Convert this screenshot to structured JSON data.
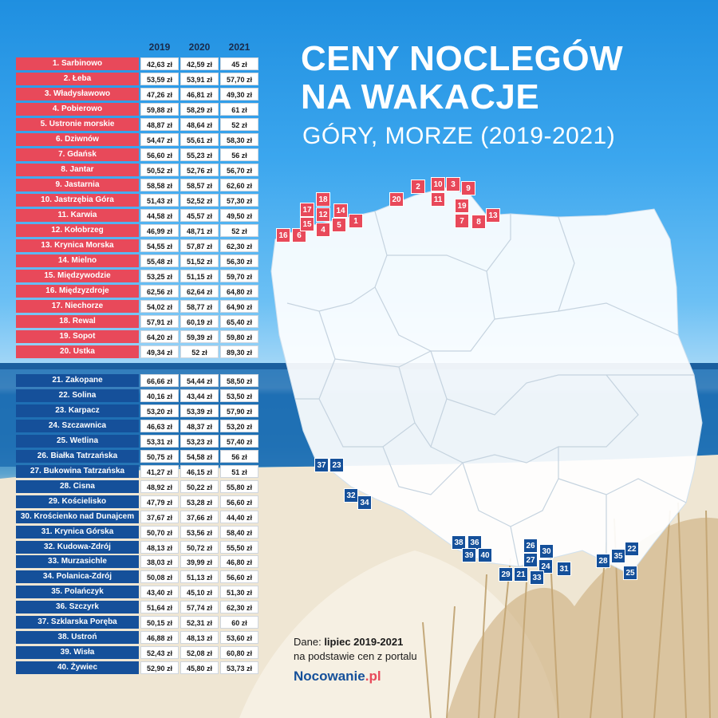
{
  "title_line1": "CENY NOCLEGÓW",
  "title_line2": "NA WAKACJE",
  "subtitle": "GÓRY, MORZE (2019-2021)",
  "years": [
    "2019",
    "2020",
    "2021"
  ],
  "colors": {
    "sea": "#e8495a",
    "mountains": "#15509a"
  },
  "rows": [
    {
      "label": "1. Sarbinowo",
      "v2019": "42,63 zł",
      "v2020": "42,59 zł",
      "v2021": "45 zł",
      "group": "sea"
    },
    {
      "label": "2. Łeba",
      "v2019": "53,59 zł",
      "v2020": "53,91 zł",
      "v2021": "57,70 zł",
      "group": "sea"
    },
    {
      "label": "3. Władysławowo",
      "v2019": "47,26 zł",
      "v2020": "46,81 zł",
      "v2021": "49,30 zł",
      "group": "sea"
    },
    {
      "label": "4. Pobierowo",
      "v2019": "59,88 zł",
      "v2020": "58,29 zł",
      "v2021": "61 zł",
      "group": "sea"
    },
    {
      "label": "5. Ustronie morskie",
      "v2019": "48,87 zł",
      "v2020": "48,64 zł",
      "v2021": "52 zł",
      "group": "sea"
    },
    {
      "label": "6. Dziwnów",
      "v2019": "54,47 zł",
      "v2020": "55,61 zł",
      "v2021": "58,30 zł",
      "group": "sea"
    },
    {
      "label": "7. Gdańsk",
      "v2019": "56,60 zł",
      "v2020": "55,23 zł",
      "v2021": "56 zł",
      "group": "sea"
    },
    {
      "label": "8. Jantar",
      "v2019": "50,52 zł",
      "v2020": "52,76 zł",
      "v2021": "56,70 zł",
      "group": "sea"
    },
    {
      "label": "9. Jastarnia",
      "v2019": "58,58 zł",
      "v2020": "58,57 zł",
      "v2021": "62,60 zł",
      "group": "sea"
    },
    {
      "label": "10. Jastrzębia Góra",
      "v2019": "51,43 zł",
      "v2020": "52,52 zł",
      "v2021": "57,30 zł",
      "group": "sea"
    },
    {
      "label": "11. Karwia",
      "v2019": "44,58 zł",
      "v2020": "45,57 zł",
      "v2021": "49,50 zł",
      "group": "sea"
    },
    {
      "label": "12. Kołobrzeg",
      "v2019": "46,99 zł",
      "v2020": "48,71 zł",
      "v2021": "52 zł",
      "group": "sea"
    },
    {
      "label": "13. Krynica Morska",
      "v2019": "54,55 zł",
      "v2020": "57,87 zł",
      "v2021": "62,30 zł",
      "group": "sea"
    },
    {
      "label": "14. Mielno",
      "v2019": "55,48 zł",
      "v2020": "51,52 zł",
      "v2021": "56,30 zł",
      "group": "sea"
    },
    {
      "label": "15. Międzywodzie",
      "v2019": "53,25 zł",
      "v2020": "51,15 zł",
      "v2021": "59,70 zł",
      "group": "sea"
    },
    {
      "label": "16. Międzyzdroje",
      "v2019": "62,56 zł",
      "v2020": "62,64 zł",
      "v2021": "64,80 zł",
      "group": "sea"
    },
    {
      "label": "17. Niechorze",
      "v2019": "54,02 zł",
      "v2020": "58,77 zł",
      "v2021": "64,90 zł",
      "group": "sea"
    },
    {
      "label": "18. Rewal",
      "v2019": "57,91 zł",
      "v2020": "60,19 zł",
      "v2021": "65,40 zł",
      "group": "sea"
    },
    {
      "label": "19. Sopot",
      "v2019": "64,20 zł",
      "v2020": "59,39 zł",
      "v2021": "59,80 zł",
      "group": "sea"
    },
    {
      "label": "20. Ustka",
      "v2019": "49,34 zł",
      "v2020": "52 zł",
      "v2021": "89,30 zł",
      "group": "sea"
    },
    {
      "label": "21. Zakopane",
      "v2019": "66,66 zł",
      "v2020": "54,44 zł",
      "v2021": "58,50 zł",
      "group": "mnt"
    },
    {
      "label": "22. Solina",
      "v2019": "40,16 zł",
      "v2020": "43,44 zł",
      "v2021": "53,50 zł",
      "group": "mnt"
    },
    {
      "label": "23. Karpacz",
      "v2019": "53,20 zł",
      "v2020": "53,39 zł",
      "v2021": "57,90 zł",
      "group": "mnt"
    },
    {
      "label": "24. Szczawnica",
      "v2019": "46,63 zł",
      "v2020": "48,37 zł",
      "v2021": "53,20 zł",
      "group": "mnt"
    },
    {
      "label": "25. Wetlina",
      "v2019": "53,31 zł",
      "v2020": "53,23 zł",
      "v2021": "57,40 zł",
      "group": "mnt"
    },
    {
      "label": "26. Białka Tatrzańska",
      "v2019": "50,75 zł",
      "v2020": "54,58 zł",
      "v2021": "56 zł",
      "group": "mnt"
    },
    {
      "label": "27. Bukowina Tatrzańska",
      "v2019": "41,27 zł",
      "v2020": "46,15 zł",
      "v2021": "51 zł",
      "group": "mnt"
    },
    {
      "label": "28. Cisna",
      "v2019": "48,92 zł",
      "v2020": "50,22 zł",
      "v2021": "55,80 zł",
      "group": "mnt"
    },
    {
      "label": "29. Kościelisko",
      "v2019": "47,79 zł",
      "v2020": "53,28 zł",
      "v2021": "56,60 zł",
      "group": "mnt"
    },
    {
      "label": "30. Krościenko nad Dunajcem",
      "v2019": "37,67 zł",
      "v2020": "37,66 zł",
      "v2021": "44,40 zł",
      "group": "mnt"
    },
    {
      "label": "31. Krynica Górska",
      "v2019": "50,70 zł",
      "v2020": "53,56 zł",
      "v2021": "58,40 zł",
      "group": "mnt"
    },
    {
      "label": "32. Kudowa-Zdrój",
      "v2019": "48,13 zł",
      "v2020": "50,72 zł",
      "v2021": "55,50 zł",
      "group": "mnt"
    },
    {
      "label": "33. Murzasichle",
      "v2019": "38,03 zł",
      "v2020": "39,99 zł",
      "v2021": "46,80 zł",
      "group": "mnt"
    },
    {
      "label": "34. Polanica-Zdrój",
      "v2019": "50,08 zł",
      "v2020": "51,13 zł",
      "v2021": "56,60 zł",
      "group": "mnt"
    },
    {
      "label": "35. Polańczyk",
      "v2019": "43,40 zł",
      "v2020": "45,10 zł",
      "v2021": "51,30 zł",
      "group": "mnt"
    },
    {
      "label": "36. Szczyrk",
      "v2019": "51,64 zł",
      "v2020": "57,74 zł",
      "v2021": "62,30 zł",
      "group": "mnt"
    },
    {
      "label": "37. Szklarska Poręba",
      "v2019": "50,15 zł",
      "v2020": "52,31 zł",
      "v2021": "60 zł",
      "group": "mnt"
    },
    {
      "label": "38. Ustroń",
      "v2019": "46,88 zł",
      "v2020": "48,13 zł",
      "v2021": "53,60 zł",
      "group": "mnt"
    },
    {
      "label": "39. Wisła",
      "v2019": "52,43 zł",
      "v2020": "52,08 zł",
      "v2021": "60,80 zł",
      "group": "mnt"
    },
    {
      "label": "40. Żywiec",
      "v2019": "52,90 zł",
      "v2020": "45,80 zł",
      "v2021": "53,73 zł",
      "group": "mnt"
    }
  ],
  "markers": [
    {
      "n": "1",
      "group": "sea"
    },
    {
      "n": "2",
      "group": "sea"
    },
    {
      "n": "3",
      "group": "sea"
    },
    {
      "n": "4",
      "group": "sea"
    },
    {
      "n": "5",
      "group": "sea"
    },
    {
      "n": "6",
      "group": "sea"
    },
    {
      "n": "7",
      "group": "sea"
    },
    {
      "n": "8",
      "group": "sea"
    },
    {
      "n": "9",
      "group": "sea"
    },
    {
      "n": "10",
      "group": "sea"
    },
    {
      "n": "11",
      "group": "sea"
    },
    {
      "n": "12",
      "group": "sea"
    },
    {
      "n": "13",
      "group": "sea"
    },
    {
      "n": "14",
      "group": "sea"
    },
    {
      "n": "15",
      "group": "sea"
    },
    {
      "n": "16",
      "group": "sea"
    },
    {
      "n": "17",
      "group": "sea"
    },
    {
      "n": "18",
      "group": "sea"
    },
    {
      "n": "19",
      "group": "sea"
    },
    {
      "n": "20",
      "group": "sea"
    },
    {
      "n": "21",
      "group": "mnt"
    },
    {
      "n": "22",
      "group": "mnt"
    },
    {
      "n": "23",
      "group": "mnt"
    },
    {
      "n": "24",
      "group": "mnt"
    },
    {
      "n": "25",
      "group": "mnt"
    },
    {
      "n": "26",
      "group": "mnt"
    },
    {
      "n": "27",
      "group": "mnt"
    },
    {
      "n": "28",
      "group": "mnt"
    },
    {
      "n": "29",
      "group": "mnt"
    },
    {
      "n": "30",
      "group": "mnt"
    },
    {
      "n": "31",
      "group": "mnt"
    },
    {
      "n": "32",
      "group": "mnt"
    },
    {
      "n": "33",
      "group": "mnt"
    },
    {
      "n": "34",
      "group": "mnt"
    },
    {
      "n": "35",
      "group": "mnt"
    },
    {
      "n": "36",
      "group": "mnt"
    },
    {
      "n": "37",
      "group": "mnt"
    },
    {
      "n": "38",
      "group": "mnt"
    },
    {
      "n": "39",
      "group": "mnt"
    },
    {
      "n": "40",
      "group": "mnt"
    }
  ],
  "source": {
    "prefix": "Dane: ",
    "bold": "lipiec 2019-2021",
    "line2": "na podstawie cen z portalu",
    "brand_main": "Nocowanie",
    "brand_dom": ".pl"
  }
}
